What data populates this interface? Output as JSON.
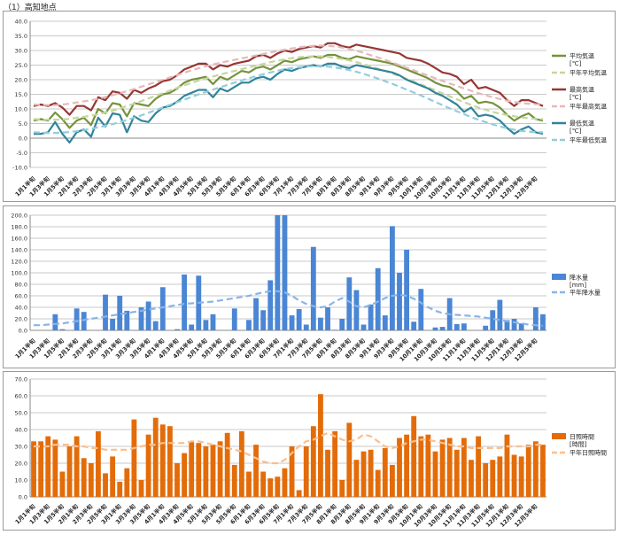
{
  "page_title": "（1）高知地点",
  "chart_data": [
    {
      "type": "line",
      "ylim": [
        -10,
        40
      ],
      "yticks": [
        "-10.0",
        "-5.0",
        "0.0",
        "5.0",
        "10.0",
        "15.0",
        "20.0",
        "25.0",
        "30.0",
        "35.0",
        "40.0"
      ],
      "grid": true,
      "legend_position": "right",
      "categories": [
        "1月1半旬",
        "1月2半旬",
        "1月3半旬",
        "1月4半旬",
        "1月5半旬",
        "1月6半旬",
        "2月1半旬",
        "2月2半旬",
        "2月3半旬",
        "2月4半旬",
        "2月5半旬",
        "2月6半旬",
        "3月1半旬",
        "3月2半旬",
        "3月3半旬",
        "3月4半旬",
        "3月5半旬",
        "3月6半旬",
        "4月1半旬",
        "4月2半旬",
        "4月3半旬",
        "4月4半旬",
        "4月5半旬",
        "4月6半旬",
        "5月1半旬",
        "5月2半旬",
        "5月3半旬",
        "5月4半旬",
        "5月5半旬",
        "5月6半旬",
        "6月1半旬",
        "6月2半旬",
        "6月3半旬",
        "6月4半旬",
        "6月5半旬",
        "6月6半旬",
        "7月1半旬",
        "7月2半旬",
        "7月3半旬",
        "7月4半旬",
        "7月5半旬",
        "7月6半旬",
        "8月1半旬",
        "8月2半旬",
        "8月3半旬",
        "8月4半旬",
        "8月5半旬",
        "8月6半旬",
        "9月1半旬",
        "9月2半旬",
        "9月3半旬",
        "9月4半旬",
        "9月5半旬",
        "9月6半旬",
        "10月1半旬",
        "10月2半旬",
        "10月3半旬",
        "10月4半旬",
        "10月5半旬",
        "10月6半旬",
        "11月1半旬",
        "11月2半旬",
        "11月3半旬",
        "11月4半旬",
        "11月5半旬",
        "11月6半旬",
        "12月1半旬",
        "12月2半旬",
        "12月3半旬",
        "12月4半旬",
        "12月5半旬",
        "12月6半旬"
      ],
      "xtick_labels": [
        "1月1半旬",
        "1月3半旬",
        "1月5半旬",
        "2月1半旬",
        "2月3半旬",
        "2月5半旬",
        "3月1半旬",
        "3月3半旬",
        "3月5半旬",
        "4月1半旬",
        "4月3半旬",
        "4月5半旬",
        "5月1半旬",
        "5月3半旬",
        "5月5半旬",
        "6月1半旬",
        "6月3半旬",
        "6月5半旬",
        "7月1半旬",
        "7月3半旬",
        "7月5半旬",
        "8月1半旬",
        "8月3半旬",
        "8月5半旬",
        "9月1半旬",
        "9月3半旬",
        "9月5半旬",
        "10月1半旬",
        "10月3半旬",
        "10月5半旬",
        "11月1半旬",
        "11月3半旬",
        "11月5半旬",
        "12月1半旬",
        "12月3半旬",
        "12月5半旬"
      ],
      "series": [
        {
          "name": "平均気温",
          "unit": "[℃]",
          "color": "#76923c",
          "style": "solid",
          "values": [
            6.0,
            6.5,
            6.0,
            8.8,
            6.5,
            3.5,
            6.0,
            7.0,
            4.5,
            10.0,
            8.5,
            12.0,
            11.5,
            7.5,
            12.0,
            11.5,
            11.0,
            13.5,
            15.0,
            15.5,
            17.0,
            19.0,
            20.0,
            20.5,
            21.0,
            18.5,
            21.0,
            20.0,
            21.5,
            23.0,
            22.5,
            24.0,
            24.5,
            23.5,
            25.0,
            26.5,
            26.0,
            27.0,
            27.5,
            28.0,
            27.5,
            28.5,
            28.5,
            27.5,
            27.0,
            28.0,
            27.5,
            27.0,
            26.5,
            26.0,
            25.5,
            24.5,
            23.5,
            22.5,
            21.5,
            20.5,
            19.0,
            18.0,
            17.5,
            16.0,
            13.5,
            14.5,
            12.0,
            12.5,
            12.0,
            10.5,
            8.0,
            6.0,
            7.5,
            8.5,
            6.5,
            6.0
          ]
        },
        {
          "name": "平年平均気温",
          "unit": "",
          "color": "#c4d79b",
          "style": "dashed",
          "values": [
            6.5,
            6.4,
            6.3,
            6.3,
            6.4,
            6.6,
            7.0,
            7.3,
            7.7,
            8.2,
            8.8,
            9.4,
            10.2,
            11.0,
            11.8,
            12.7,
            13.6,
            14.5,
            15.4,
            16.3,
            17.2,
            18.1,
            18.9,
            19.7,
            20.4,
            21.1,
            21.8,
            22.4,
            23.0,
            23.6,
            24.2,
            24.8,
            25.4,
            26.0,
            26.5,
            27.0,
            27.4,
            27.7,
            27.9,
            28.0,
            28.0,
            27.8,
            27.5,
            27.1,
            26.6,
            26.0,
            25.3,
            24.6,
            23.8,
            23.0,
            22.1,
            21.2,
            20.3,
            19.4,
            18.4,
            17.4,
            16.4,
            15.3,
            14.3,
            13.3,
            12.3,
            11.4,
            10.5,
            9.7,
            9.0,
            8.4,
            7.9,
            7.5,
            7.1,
            6.8,
            6.6,
            6.5
          ]
        },
        {
          "name": "最高気温",
          "unit": "[℃]",
          "color": "#953735",
          "style": "solid",
          "values": [
            11.0,
            11.5,
            11.0,
            12.0,
            10.5,
            8.0,
            11.0,
            11.0,
            9.5,
            14.0,
            13.0,
            16.0,
            15.5,
            13.5,
            16.5,
            15.5,
            17.0,
            18.0,
            19.5,
            20.0,
            21.5,
            23.5,
            24.5,
            25.5,
            25.5,
            23.5,
            25.0,
            24.5,
            25.5,
            26.0,
            26.5,
            28.0,
            28.5,
            27.5,
            29.0,
            30.0,
            29.5,
            30.5,
            31.0,
            31.5,
            31.0,
            32.5,
            32.5,
            31.5,
            31.0,
            32.0,
            31.5,
            31.0,
            30.5,
            30.0,
            29.5,
            29.0,
            27.5,
            27.0,
            26.5,
            25.5,
            24.0,
            22.5,
            22.0,
            21.0,
            18.5,
            20.0,
            17.0,
            17.5,
            16.5,
            15.5,
            13.0,
            11.0,
            13.0,
            13.0,
            12.0,
            11.0
          ]
        },
        {
          "name": "平年最高気温",
          "unit": "",
          "color": "#e6b9b8",
          "style": "dashed",
          "values": [
            11.5,
            11.4,
            11.3,
            11.3,
            11.5,
            11.8,
            12.2,
            12.6,
            13.0,
            13.5,
            14.1,
            14.7,
            15.4,
            16.1,
            16.8,
            17.6,
            18.4,
            19.2,
            20.0,
            20.8,
            21.6,
            22.4,
            23.2,
            23.9,
            24.6,
            25.2,
            25.8,
            26.3,
            26.8,
            27.3,
            27.8,
            28.3,
            28.8,
            29.3,
            29.8,
            30.3,
            30.7,
            31.1,
            31.4,
            31.6,
            31.7,
            31.6,
            31.4,
            31.0,
            30.5,
            29.9,
            29.2,
            28.4,
            27.6,
            26.8,
            25.9,
            25.0,
            24.1,
            23.2,
            22.3,
            21.4,
            20.5,
            19.6,
            18.7,
            17.9,
            17.0,
            16.2,
            15.4,
            14.7,
            14.0,
            13.4,
            12.8,
            12.4,
            12.0,
            11.8,
            11.6,
            11.5
          ]
        },
        {
          "name": "最低気温",
          "unit": "[℃]",
          "color": "#31849b",
          "style": "solid",
          "values": [
            1.5,
            1.5,
            2.0,
            5.5,
            1.5,
            -1.5,
            2.0,
            3.0,
            0.5,
            7.0,
            4.0,
            8.5,
            8.0,
            2.0,
            7.5,
            6.0,
            5.5,
            8.5,
            10.5,
            11.0,
            12.5,
            14.5,
            15.5,
            16.5,
            16.5,
            14.0,
            17.0,
            16.0,
            17.5,
            19.0,
            19.0,
            20.5,
            21.0,
            20.0,
            22.0,
            23.5,
            23.0,
            24.0,
            24.5,
            25.0,
            24.5,
            25.5,
            25.5,
            24.5,
            24.0,
            25.0,
            24.5,
            24.0,
            23.5,
            23.0,
            22.5,
            21.5,
            20.0,
            19.0,
            18.0,
            17.0,
            15.5,
            14.5,
            13.0,
            11.5,
            9.0,
            10.5,
            7.5,
            8.0,
            7.5,
            6.0,
            3.5,
            1.5,
            3.0,
            4.0,
            2.0,
            1.5
          ]
        },
        {
          "name": "平年最低気温",
          "unit": "",
          "color": "#92cddc",
          "style": "dashed",
          "values": [
            2.0,
            1.9,
            1.8,
            1.8,
            1.9,
            2.1,
            2.4,
            2.8,
            3.2,
            3.7,
            4.2,
            4.8,
            5.5,
            6.2,
            7.0,
            7.8,
            8.7,
            9.6,
            10.5,
            11.4,
            12.3,
            13.2,
            14.1,
            15.0,
            15.8,
            16.6,
            17.4,
            18.2,
            19.0,
            19.8,
            20.5,
            21.2,
            21.9,
            22.5,
            23.1,
            23.6,
            24.0,
            24.3,
            24.5,
            24.6,
            24.6,
            24.5,
            24.2,
            23.8,
            23.3,
            22.7,
            22.0,
            21.2,
            20.4,
            19.5,
            18.6,
            17.6,
            16.6,
            15.6,
            14.6,
            13.5,
            12.4,
            11.3,
            10.2,
            9.2,
            8.2,
            7.2,
            6.3,
            5.5,
            4.7,
            4.0,
            3.4,
            2.9,
            2.5,
            2.2,
            2.1,
            2.0
          ]
        }
      ]
    },
    {
      "type": "bar",
      "ylim": [
        0,
        200
      ],
      "yticks": [
        "0.0",
        "20.0",
        "40.0",
        "60.0",
        "80.0",
        "100.0",
        "120.0",
        "140.0",
        "160.0",
        "180.0",
        "200.0"
      ],
      "grid": true,
      "legend_position": "right",
      "series": [
        {
          "name": "降水量",
          "unit": "[mm]",
          "kind": "bar",
          "color": "#4a86d4",
          "values": [
            0,
            0,
            0,
            28,
            2,
            0,
            38,
            32,
            0,
            0,
            62,
            20,
            60,
            34,
            0,
            40,
            50,
            16,
            75,
            0,
            2,
            97,
            10,
            95,
            18,
            28,
            0,
            0,
            38,
            0,
            18,
            56,
            35,
            87,
            200,
            200,
            26,
            37,
            10,
            145,
            22,
            40,
            1,
            20,
            92,
            70,
            10,
            45,
            108,
            26,
            181,
            100,
            140,
            15,
            72,
            0,
            5,
            6,
            56,
            11,
            12,
            0,
            0,
            8,
            35,
            53,
            18,
            20,
            12,
            0,
            40,
            28
          ]
        },
        {
          "name": "平年降水量",
          "unit": "",
          "kind": "dashed-line",
          "color": "#8ab4e8",
          "values": [
            9,
            9,
            10,
            11,
            12,
            14,
            16,
            18,
            20,
            22,
            24,
            26,
            28,
            30,
            32,
            34,
            36,
            38,
            40,
            42,
            44,
            46,
            47,
            48,
            49,
            50,
            52,
            54,
            56,
            58,
            60,
            63,
            66,
            68,
            68,
            66,
            60,
            52,
            46,
            42,
            40,
            42,
            50,
            56,
            50,
            42,
            40,
            44,
            50,
            56,
            60,
            62,
            60,
            55,
            48,
            40,
            34,
            30,
            28,
            27,
            26,
            25,
            24,
            22,
            20,
            18,
            16,
            14,
            12,
            10,
            9,
            8
          ]
        }
      ]
    },
    {
      "type": "bar",
      "ylim": [
        0,
        70
      ],
      "yticks": [
        "0.0",
        "10.0",
        "20.0",
        "30.0",
        "40.0",
        "50.0",
        "60.0",
        "70.0"
      ],
      "grid": true,
      "legend_position": "right",
      "series": [
        {
          "name": "日照時間",
          "unit": "[時間]",
          "kind": "bar",
          "color": "#e36c09",
          "values": [
            33,
            33,
            36,
            34,
            15,
            30,
            36,
            23,
            20,
            39,
            14,
            24,
            9,
            17,
            46,
            10,
            37,
            47,
            43,
            42,
            20,
            26,
            33,
            32,
            30,
            31,
            33,
            38,
            19,
            39,
            15,
            31,
            15,
            11,
            12,
            17,
            30,
            4,
            30,
            42,
            61,
            28,
            39,
            10,
            44,
            22,
            27,
            28,
            16,
            29,
            19,
            35,
            37,
            48,
            36,
            37,
            27,
            34,
            35,
            28,
            35,
            22,
            36,
            20,
            22,
            24,
            37,
            25,
            24,
            31,
            33,
            31
          ]
        },
        {
          "name": "平年日照時間",
          "unit": "",
          "kind": "dashed-line",
          "color": "#fabf8f",
          "values": [
            30,
            30,
            30,
            31,
            31,
            31,
            30,
            30,
            29,
            29,
            28,
            28,
            28,
            28,
            29,
            30,
            31,
            31,
            32,
            32,
            32,
            32,
            33,
            33,
            32,
            31,
            30,
            29,
            28,
            27,
            25,
            23,
            21,
            20,
            20,
            22,
            26,
            30,
            33,
            34,
            36,
            38,
            36,
            34,
            33,
            34,
            37,
            36,
            33,
            30,
            29,
            30,
            32,
            33,
            34,
            34,
            33,
            32,
            31,
            30,
            30,
            29,
            29,
            29,
            29,
            29,
            30,
            30,
            30,
            30,
            31,
            31
          ]
        }
      ]
    }
  ]
}
